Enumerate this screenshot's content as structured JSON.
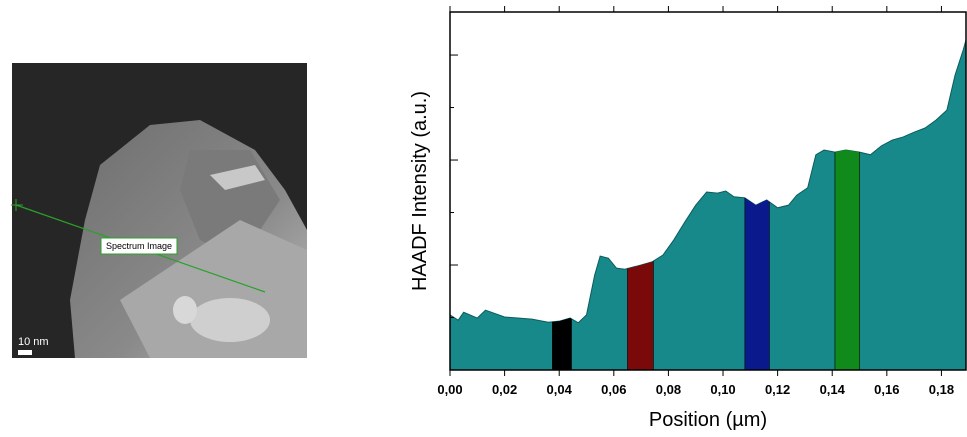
{
  "image": {
    "label": "Spectrum Image",
    "scale_bar": "10 nm"
  },
  "chart_data": {
    "type": "area",
    "x_label": "Position (µm)",
    "y_label": "HAADF Intensity (a.u.)",
    "x": [
      0.0,
      0.003,
      0.005,
      0.01,
      0.013,
      0.02,
      0.03,
      0.036,
      0.04,
      0.044,
      0.047,
      0.05,
      0.053,
      0.055,
      0.058,
      0.061,
      0.064,
      0.07,
      0.074,
      0.078,
      0.082,
      0.086,
      0.09,
      0.094,
      0.098,
      0.101,
      0.104,
      0.108,
      0.112,
      0.116,
      0.12,
      0.124,
      0.127,
      0.131,
      0.134,
      0.137,
      0.141,
      0.145,
      0.15,
      0.154,
      0.158,
      0.162,
      0.166,
      0.17,
      0.174,
      0.178,
      0.182,
      0.185,
      0.188,
      0.189
    ],
    "values": [
      1.05,
      0.95,
      1.1,
      0.99,
      1.14,
      1.01,
      0.97,
      0.91,
      0.93,
      0.99,
      0.9,
      1.05,
      1.81,
      2.17,
      2.13,
      1.94,
      1.92,
      2.0,
      2.06,
      2.19,
      2.48,
      2.82,
      3.14,
      3.39,
      3.37,
      3.41,
      3.3,
      3.28,
      3.14,
      3.24,
      3.09,
      3.14,
      3.33,
      3.47,
      4.1,
      4.19,
      4.15,
      4.19,
      4.15,
      4.1,
      4.27,
      4.38,
      4.44,
      4.53,
      4.61,
      4.76,
      4.95,
      5.62,
      6.1,
      6.29
    ],
    "color": "#17898a",
    "bands": [
      {
        "start": 0.0375,
        "end": 0.0445,
        "color": "#000000"
      },
      {
        "start": 0.065,
        "end": 0.0745,
        "color": "#7a0a0a"
      },
      {
        "start": 0.108,
        "end": 0.117,
        "color": "#0a1a8c"
      },
      {
        "start": 0.141,
        "end": 0.15,
        "color": "#118a1c"
      }
    ],
    "xlim": [
      0,
      0.189
    ],
    "ylim": [
      0,
      6.82
    ],
    "xticks": [
      {
        "value": 0,
        "label": "0,00"
      },
      {
        "value": 0.02,
        "label": "0,02"
      },
      {
        "value": 0.04,
        "label": "0,04"
      },
      {
        "value": 0.06,
        "label": "0,06"
      },
      {
        "value": 0.08,
        "label": "0,08"
      },
      {
        "value": 0.1,
        "label": "0,10"
      },
      {
        "value": 0.12,
        "label": "0,12"
      },
      {
        "value": 0.14,
        "label": "0,14"
      },
      {
        "value": 0.16,
        "label": "0,16"
      },
      {
        "value": 0.18,
        "label": "0,18"
      }
    ],
    "yticks": [
      1,
      2,
      3,
      4,
      5,
      6
    ]
  }
}
